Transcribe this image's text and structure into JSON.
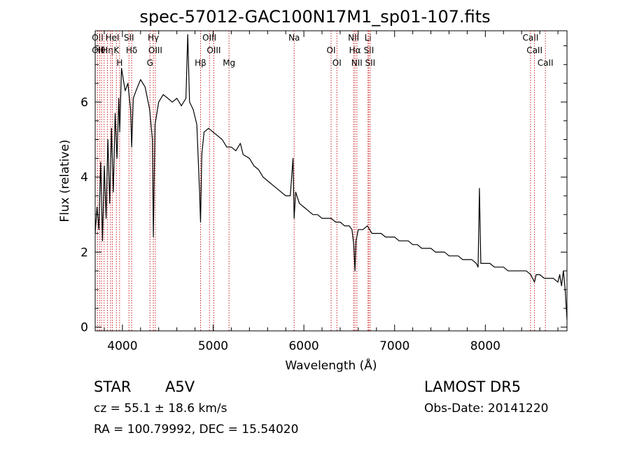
{
  "chart_data": {
    "type": "line",
    "title": "spec-57012-GAC100N17M1_sp01-107.fits",
    "xlabel": "Wavelength (Å)",
    "ylabel": "Flux (relative)",
    "xlim": [
      3700,
      8900
    ],
    "ylim": [
      -0.1,
      7.9
    ],
    "x_ticks": [
      4000,
      5000,
      6000,
      7000,
      8000
    ],
    "y_ticks": [
      0,
      2,
      4,
      6
    ],
    "grid": false,
    "line_color": "#000000",
    "marker_color": "#cc2222",
    "series": [
      {
        "x": [
          3700,
          3720,
          3740,
          3760,
          3780,
          3800,
          3820,
          3840,
          3860,
          3880,
          3900,
          3920,
          3940,
          3960,
          3970,
          3990,
          4010,
          4030,
          4060,
          4090,
          4102,
          4120,
          4150,
          4200,
          4250,
          4300,
          4330,
          4341,
          4360,
          4400,
          4450,
          4500,
          4550,
          4600,
          4650,
          4700,
          4720,
          4740,
          4780,
          4820,
          4850,
          4861,
          4875,
          4900,
          4950,
          5000,
          5050,
          5100,
          5150,
          5200,
          5250,
          5300,
          5330,
          5400,
          5450,
          5500,
          5550,
          5600,
          5650,
          5700,
          5750,
          5800,
          5850,
          5880,
          5893,
          5910,
          5950,
          6000,
          6050,
          6100,
          6150,
          6200,
          6250,
          6300,
          6350,
          6400,
          6450,
          6500,
          6530,
          6550,
          6563,
          6575,
          6600,
          6650,
          6700,
          6750,
          6800,
          6850,
          6900,
          6950,
          7000,
          7050,
          7100,
          7150,
          7200,
          7250,
          7300,
          7350,
          7400,
          7450,
          7500,
          7550,
          7600,
          7650,
          7700,
          7750,
          7800,
          7850,
          7900,
          7920,
          7935,
          7950,
          8000,
          8050,
          8100,
          8150,
          8200,
          8250,
          8300,
          8350,
          8400,
          8450,
          8500,
          8542,
          8560,
          8600,
          8650,
          8700,
          8750,
          8800,
          8820,
          8840,
          8860,
          8880,
          8900
        ],
        "y": [
          2.5,
          3.2,
          2.6,
          4.4,
          2.3,
          4.3,
          2.9,
          5.0,
          3.3,
          5.3,
          3.6,
          5.7,
          4.5,
          6.1,
          5.2,
          6.9,
          6.6,
          6.3,
          6.5,
          5.8,
          4.8,
          6.1,
          6.3,
          6.6,
          6.4,
          5.8,
          5.0,
          2.4,
          5.4,
          6.0,
          6.2,
          6.1,
          6.0,
          6.1,
          5.9,
          6.1,
          7.8,
          6.0,
          5.8,
          5.4,
          3.6,
          2.8,
          4.6,
          5.2,
          5.3,
          5.2,
          5.1,
          5.0,
          4.8,
          4.8,
          4.7,
          4.9,
          4.6,
          4.5,
          4.3,
          4.2,
          4.0,
          3.9,
          3.8,
          3.7,
          3.6,
          3.5,
          3.5,
          4.5,
          2.9,
          3.6,
          3.3,
          3.2,
          3.1,
          3.0,
          3.0,
          2.9,
          2.9,
          2.9,
          2.8,
          2.8,
          2.7,
          2.7,
          2.6,
          2.2,
          1.5,
          2.3,
          2.6,
          2.6,
          2.7,
          2.5,
          2.5,
          2.5,
          2.4,
          2.4,
          2.4,
          2.3,
          2.3,
          2.3,
          2.2,
          2.2,
          2.1,
          2.1,
          2.1,
          2.0,
          2.0,
          2.0,
          1.9,
          1.9,
          1.9,
          1.8,
          1.8,
          1.8,
          1.7,
          1.6,
          3.7,
          1.7,
          1.7,
          1.7,
          1.6,
          1.6,
          1.6,
          1.5,
          1.5,
          1.5,
          1.5,
          1.5,
          1.4,
          1.2,
          1.4,
          1.4,
          1.3,
          1.3,
          1.3,
          1.2,
          1.4,
          1.1,
          1.5,
          1.0,
          0.2
        ]
      }
    ],
    "lines": [
      {
        "x": 3727,
        "labels": [
          "OII",
          "OII"
        ]
      },
      {
        "x": 3750,
        "labels": [
          "Hθ"
        ]
      },
      {
        "x": 3771,
        "labels": [
          ""
        ]
      },
      {
        "x": 3798,
        "labels": [
          ""
        ]
      },
      {
        "x": 3835,
        "labels": [
          "Hη"
        ]
      },
      {
        "x": 3869,
        "labels": [
          ""
        ]
      },
      {
        "x": 3889,
        "labels": [
          "HeI"
        ]
      },
      {
        "x": 3934,
        "labels": [
          "K"
        ]
      },
      {
        "x": 3969,
        "labels": [
          "H"
        ]
      },
      {
        "x": 4072,
        "labels": [
          "SII"
        ]
      },
      {
        "x": 4102,
        "labels": [
          "Hδ"
        ]
      },
      {
        "x": 4304,
        "labels": [
          "G"
        ]
      },
      {
        "x": 4341,
        "labels": [
          "Hγ"
        ]
      },
      {
        "x": 4363,
        "labels": [
          "OIII"
        ]
      },
      {
        "x": 4861,
        "labels": [
          "Hβ"
        ]
      },
      {
        "x": 4959,
        "labels": [
          "OIII"
        ]
      },
      {
        "x": 5007,
        "labels": [
          "OIII"
        ]
      },
      {
        "x": 5175,
        "labels": [
          "Mg"
        ]
      },
      {
        "x": 5893,
        "labels": [
          "Na"
        ]
      },
      {
        "x": 6300,
        "labels": [
          "OI"
        ]
      },
      {
        "x": 6364,
        "labels": [
          "OI"
        ]
      },
      {
        "x": 6548,
        "labels": [
          "NII"
        ]
      },
      {
        "x": 6563,
        "labels": [
          "Hα"
        ]
      },
      {
        "x": 6584,
        "labels": [
          "NII"
        ]
      },
      {
        "x": 6707,
        "labels": [
          "Li"
        ]
      },
      {
        "x": 6716,
        "labels": [
          "SII"
        ]
      },
      {
        "x": 6731,
        "labels": [
          "SII"
        ]
      },
      {
        "x": 8498,
        "labels": [
          "CaII"
        ]
      },
      {
        "x": 8542,
        "labels": [
          "CaII"
        ]
      },
      {
        "x": 8662,
        "labels": [
          "CaII"
        ]
      }
    ]
  },
  "info": {
    "object_class": "STAR",
    "subclass": "A5V",
    "cz": "cz = 55.1 ± 18.6 km/s",
    "coords": "RA = 100.79992, DEC =  15.54020",
    "survey": "LAMOST  DR5",
    "obs_date": "Obs-Date: 20141220"
  }
}
